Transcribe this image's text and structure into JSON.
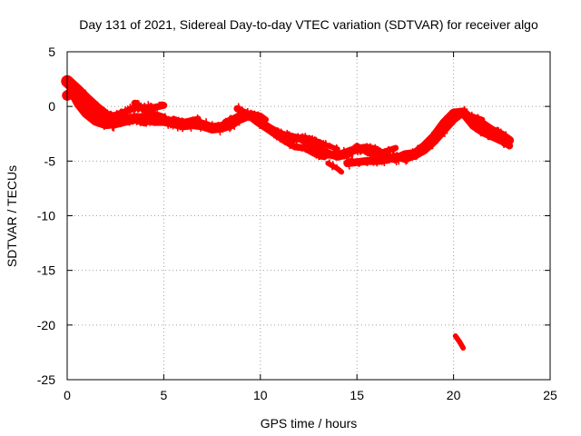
{
  "chart_data": {
    "type": "scatter",
    "title": "Day 131 of 2021, Sidereal Day-to-day VTEC variation (SDTVAR) for receiver algo",
    "xlabel": "GPS time / hours",
    "ylabel": "SDTVAR / TECUs",
    "xlim": [
      0,
      25
    ],
    "ylim": [
      -25,
      5
    ],
    "xticks": [
      0,
      5,
      10,
      15,
      20,
      25
    ],
    "yticks": [
      5,
      0,
      -5,
      -10,
      -15,
      -20,
      -25
    ],
    "grid": true,
    "series": [
      {
        "name": "SDTVAR",
        "color": "#ff0000",
        "bands": [
          {
            "points": [
              [
                0.0,
                1.0
              ],
              [
                0.3,
                1.3
              ],
              [
                0.6,
                0.3
              ],
              [
                1.0,
                -0.6
              ],
              [
                1.5,
                -1.3
              ],
              [
                2.0,
                -1.6
              ],
              [
                2.5,
                -1.5
              ],
              [
                3.0,
                -1.3
              ],
              [
                3.5,
                -1.1
              ],
              [
                4.0,
                -1.1
              ],
              [
                4.5,
                -1.3
              ],
              [
                5.0,
                -1.3
              ],
              [
                5.5,
                -1.5
              ],
              [
                6.0,
                -1.7
              ],
              [
                6.5,
                -1.6
              ],
              [
                7.0,
                -1.7
              ],
              [
                7.5,
                -2.0
              ],
              [
                8.0,
                -1.9
              ],
              [
                8.5,
                -1.6
              ],
              [
                8.8,
                -1.2
              ],
              [
                9.2,
                -0.9
              ]
            ],
            "spread": 0.6
          },
          {
            "points": [
              [
                0.0,
                2.3
              ],
              [
                0.5,
                1.5
              ],
              [
                1.0,
                0.6
              ],
              [
                1.5,
                -0.2
              ],
              [
                2.0,
                -0.9
              ],
              [
                2.5,
                -1.2
              ]
            ],
            "spread": 0.7
          },
          {
            "points": [
              [
                2.0,
                -1.0
              ],
              [
                2.5,
                -0.8
              ],
              [
                3.0,
                -0.5
              ],
              [
                3.5,
                -0.1
              ],
              [
                4.0,
                -0.1
              ],
              [
                4.5,
                -0.1
              ],
              [
                5.0,
                0.1
              ]
            ],
            "spread": 0.4
          },
          {
            "points": [
              [
                3.5,
                0.3
              ],
              [
                4.0,
                -0.3
              ],
              [
                4.5,
                -0.7
              ],
              [
                5.0,
                -1.0
              ]
            ],
            "spread": 0.4
          },
          {
            "points": [
              [
                2.5,
                -1.6
              ],
              [
                3.0,
                -1.5
              ],
              [
                3.5,
                -1.3
              ],
              [
                4.0,
                -1.6
              ],
              [
                4.5,
                -1.2
              ],
              [
                5.0,
                -1.2
              ],
              [
                5.5,
                -1.3
              ]
            ],
            "spread": 0.3
          },
          {
            "points": [
              [
                5.5,
                -1.1
              ],
              [
                6.0,
                -1.4
              ],
              [
                6.5,
                -1.2
              ],
              [
                6.8,
                -1.1
              ]
            ],
            "spread": 0.3
          },
          {
            "points": [
              [
                8.2,
                -1.5
              ],
              [
                8.8,
                -1.0
              ],
              [
                9.2,
                -0.6
              ],
              [
                9.6,
                -0.9
              ],
              [
                10.0,
                -1.4
              ],
              [
                10.5,
                -2.0
              ],
              [
                11.0,
                -2.5
              ],
              [
                11.5,
                -3.0
              ],
              [
                12.0,
                -2.9
              ],
              [
                12.5,
                -3.3
              ],
              [
                13.0,
                -3.8
              ],
              [
                13.5,
                -4.3
              ],
              [
                14.0,
                -4.6
              ],
              [
                14.5,
                -4.4
              ],
              [
                14.8,
                -4.0
              ]
            ],
            "spread": 0.45
          },
          {
            "points": [
              [
                8.8,
                -0.2
              ],
              [
                9.3,
                -0.7
              ],
              [
                9.8,
                -1.4
              ],
              [
                10.3,
                -2.0
              ],
              [
                10.8,
                -2.6
              ],
              [
                11.3,
                -3.2
              ],
              [
                11.8,
                -3.7
              ],
              [
                12.3,
                -3.8
              ],
              [
                12.8,
                -4.3
              ],
              [
                13.3,
                -4.6
              ]
            ],
            "spread": 0.4
          },
          {
            "points": [
              [
                9.5,
                -0.6
              ],
              [
                10.0,
                -0.8
              ],
              [
                10.3,
                -1.2
              ]
            ],
            "spread": 0.3
          },
          {
            "points": [
              [
                10.5,
                -2.3
              ],
              [
                11.0,
                -2.4
              ],
              [
                11.5,
                -2.6
              ],
              [
                12.0,
                -2.8
              ],
              [
                12.5,
                -2.9
              ],
              [
                13.0,
                -3.2
              ],
              [
                13.5,
                -3.6
              ],
              [
                14.0,
                -3.9
              ]
            ],
            "spread": 0.3
          },
          {
            "points": [
              [
                13.5,
                -5.2
              ],
              [
                14.0,
                -5.7
              ],
              [
                14.2,
                -6.0
              ]
            ],
            "spread": 0.3
          },
          {
            "points": [
              [
                14.0,
                -4.5
              ],
              [
                14.5,
                -4.2
              ],
              [
                15.0,
                -3.9
              ],
              [
                15.5,
                -3.8
              ],
              [
                16.0,
                -4.0
              ],
              [
                16.5,
                -4.6
              ],
              [
                17.0,
                -4.8
              ],
              [
                17.5,
                -4.4
              ],
              [
                18.0,
                -4.3
              ],
              [
                18.5,
                -3.6
              ],
              [
                19.0,
                -2.7
              ],
              [
                19.5,
                -1.5
              ],
              [
                20.0,
                -0.6
              ],
              [
                20.5,
                -0.5
              ],
              [
                21.0,
                -1.3
              ],
              [
                21.5,
                -1.6
              ],
              [
                22.0,
                -2.2
              ],
              [
                22.5,
                -2.6
              ],
              [
                22.9,
                -3.1
              ]
            ],
            "spread": 0.5
          },
          {
            "points": [
              [
                14.5,
                -5.2
              ],
              [
                15.0,
                -5.1
              ],
              [
                15.5,
                -5.0
              ],
              [
                16.0,
                -5.0
              ],
              [
                16.5,
                -4.9
              ],
              [
                17.0,
                -4.6
              ],
              [
                17.5,
                -4.8
              ],
              [
                18.0,
                -4.5
              ],
              [
                18.5,
                -4.0
              ],
              [
                19.0,
                -3.2
              ],
              [
                19.5,
                -2.2
              ],
              [
                20.0,
                -1.2
              ],
              [
                20.3,
                -0.8
              ]
            ],
            "spread": 0.45
          },
          {
            "points": [
              [
                15.0,
                -3.6
              ],
              [
                15.5,
                -4.2
              ],
              [
                16.0,
                -4.5
              ],
              [
                16.5,
                -4.1
              ],
              [
                17.0,
                -3.8
              ]
            ],
            "spread": 0.35
          },
          {
            "points": [
              [
                20.5,
                -0.7
              ],
              [
                21.0,
                -1.8
              ],
              [
                21.5,
                -2.4
              ],
              [
                22.0,
                -2.8
              ],
              [
                22.5,
                -3.2
              ],
              [
                22.9,
                -3.6
              ]
            ],
            "spread": 0.4
          },
          {
            "points": [
              [
                20.6,
                -0.8
              ],
              [
                21.0,
                -0.9
              ],
              [
                21.5,
                -1.2
              ]
            ],
            "spread": 0.3
          },
          {
            "points": [
              [
                20.1,
                -21.0
              ],
              [
                20.3,
                -21.5
              ],
              [
                20.5,
                -22.1
              ]
            ],
            "spread": 0.3
          }
        ]
      }
    ]
  }
}
